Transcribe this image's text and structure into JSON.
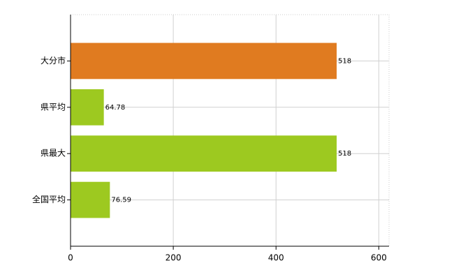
{
  "chart_data": {
    "type": "bar",
    "orientation": "horizontal",
    "categories": [
      "大分市",
      "県平均",
      "県最大",
      "全国平均"
    ],
    "values": [
      518,
      64.78,
      518,
      76.59
    ],
    "colors": [
      "#e07b20",
      "#9dc920",
      "#9dc920",
      "#9dc920"
    ],
    "xlim": [
      0,
      620
    ],
    "xticks": [
      0,
      200,
      400,
      600
    ],
    "grid": true
  }
}
